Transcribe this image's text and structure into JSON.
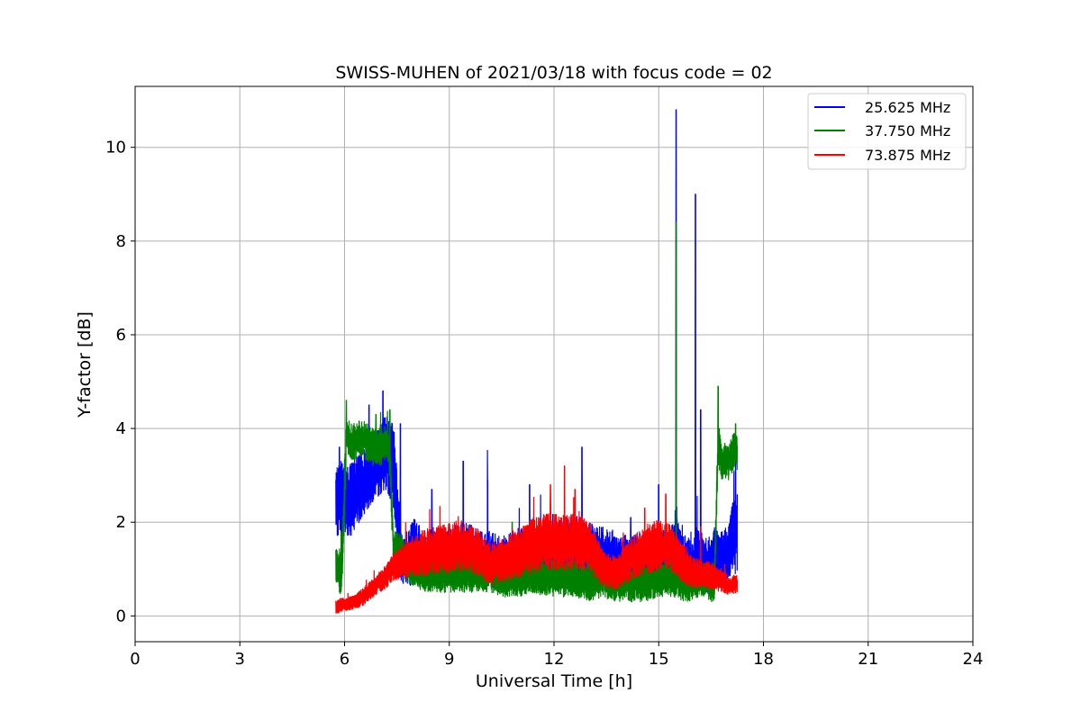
{
  "chart_data": {
    "type": "line",
    "title": "SWISS-MUHEN of 2021/03/18 with focus code = 02",
    "xlabel": "Universal Time [h]",
    "ylabel": "Y-factor [dB]",
    "xlim": [
      0,
      24
    ],
    "ylim": [
      -0.55,
      11.3
    ],
    "xticks": [
      0,
      3,
      6,
      9,
      12,
      15,
      18,
      21,
      24
    ],
    "yticks": [
      0,
      2,
      4,
      6,
      8,
      10
    ],
    "grid": true,
    "legend_position": "top-right",
    "series": [
      {
        "name": "25.625 MHz",
        "color": "#0000ff",
        "x": [
          5.75,
          5.8,
          5.9,
          6.0,
          6.2,
          6.5,
          6.8,
          7.0,
          7.2,
          7.4,
          7.5,
          7.6,
          7.8,
          8.0,
          8.3,
          8.6,
          9.0,
          9.4,
          9.8,
          10.2,
          10.6,
          11.0,
          11.4,
          11.8,
          12.2,
          12.6,
          13.0,
          13.4,
          13.8,
          14.2,
          14.6,
          15.0,
          15.3,
          15.45,
          15.5,
          15.55,
          15.65,
          15.8,
          15.95,
          16.05,
          16.1,
          16.2,
          16.4,
          16.6,
          16.8,
          17.0,
          17.1,
          17.25
        ],
        "mid": [
          2.4,
          2.5,
          2.6,
          2.3,
          2.5,
          2.8,
          3.1,
          3.3,
          3.5,
          3.2,
          2.4,
          1.3,
          1.2,
          1.4,
          1.2,
          1.3,
          1.3,
          1.4,
          1.3,
          1.2,
          1.1,
          1.3,
          1.2,
          1.3,
          1.4,
          1.5,
          1.4,
          1.3,
          1.2,
          1.1,
          1.2,
          1.2,
          1.3,
          1.4,
          1.8,
          1.4,
          1.2,
          1.1,
          1.0,
          1.2,
          1.4,
          1.2,
          1.1,
          1.3,
          1.2,
          1.4,
          1.6,
          1.8
        ],
        "band": [
          0.7,
          0.8,
          0.9,
          0.8,
          0.8,
          0.7,
          0.7,
          0.8,
          0.8,
          0.9,
          1.0,
          0.6,
          0.6,
          0.7,
          0.6,
          0.6,
          0.6,
          0.6,
          0.6,
          0.6,
          0.6,
          0.6,
          0.6,
          0.6,
          0.7,
          0.7,
          0.6,
          0.6,
          0.6,
          0.6,
          0.6,
          0.6,
          0.6,
          0.6,
          0.8,
          0.6,
          0.6,
          0.6,
          0.6,
          0.6,
          0.6,
          0.6,
          0.6,
          0.6,
          0.6,
          0.6,
          0.8,
          0.9
        ],
        "spikes": [
          [
            5.85,
            3.6
          ],
          [
            6.7,
            4.5
          ],
          [
            7.1,
            4.8
          ],
          [
            7.6,
            4.1
          ],
          [
            8.5,
            2.7
          ],
          [
            9.4,
            3.3
          ],
          [
            10.1,
            2.9
          ],
          [
            11.3,
            2.8
          ],
          [
            12.8,
            3.6
          ],
          [
            14.2,
            2.1
          ],
          [
            15.0,
            2.8
          ],
          [
            15.5,
            10.8
          ],
          [
            16.05,
            9.0
          ],
          [
            16.2,
            4.4
          ],
          [
            17.2,
            3.5
          ]
        ]
      },
      {
        "name": "37.750 MHz",
        "color": "#008000",
        "x": [
          5.75,
          5.8,
          5.9,
          6.0,
          6.05,
          6.2,
          6.5,
          6.8,
          7.0,
          7.2,
          7.3,
          7.4,
          7.6,
          7.8,
          8.0,
          8.3,
          8.6,
          9.0,
          9.4,
          9.8,
          10.2,
          10.6,
          11.0,
          11.4,
          11.8,
          12.2,
          12.6,
          13.0,
          13.4,
          13.8,
          14.2,
          14.6,
          15.0,
          15.4,
          15.8,
          16.2,
          16.5,
          16.6,
          16.7,
          16.8,
          17.0,
          17.2,
          17.25
        ],
        "mid": [
          1.1,
          1.0,
          0.9,
          2.5,
          3.9,
          3.7,
          3.8,
          3.6,
          3.6,
          3.7,
          3.4,
          1.4,
          1.4,
          1.1,
          1.0,
          0.9,
          0.9,
          0.9,
          0.9,
          0.9,
          0.9,
          0.8,
          0.8,
          0.9,
          0.8,
          0.8,
          0.8,
          0.7,
          0.8,
          0.7,
          0.7,
          0.7,
          0.8,
          0.8,
          0.7,
          0.8,
          0.7,
          0.8,
          3.7,
          3.3,
          3.3,
          3.6,
          3.5
        ],
        "band": [
          0.4,
          0.5,
          0.5,
          0.9,
          0.4,
          0.4,
          0.4,
          0.4,
          0.4,
          0.4,
          0.5,
          0.4,
          0.4,
          0.4,
          0.4,
          0.4,
          0.4,
          0.4,
          0.4,
          0.4,
          0.4,
          0.4,
          0.4,
          0.4,
          0.4,
          0.4,
          0.4,
          0.4,
          0.4,
          0.4,
          0.4,
          0.4,
          0.4,
          0.4,
          0.4,
          0.4,
          0.4,
          0.5,
          0.5,
          0.4,
          0.4,
          0.4,
          0.4
        ],
        "spikes": [
          [
            6.05,
            4.6
          ],
          [
            6.9,
            4.3
          ],
          [
            7.3,
            4.4
          ],
          [
            10.8,
            2.0
          ],
          [
            15.5,
            8.4
          ],
          [
            16.7,
            4.9
          ],
          [
            17.2,
            4.1
          ]
        ]
      },
      {
        "name": "73.875 MHz",
        "color": "#ff0000",
        "x": [
          5.75,
          6.0,
          6.3,
          6.6,
          6.9,
          7.2,
          7.4,
          7.6,
          7.8,
          8.0,
          8.3,
          8.6,
          9.0,
          9.4,
          9.8,
          10.2,
          10.6,
          11.0,
          11.4,
          11.8,
          12.2,
          12.6,
          13.0,
          13.4,
          13.8,
          14.2,
          14.6,
          15.0,
          15.3,
          15.6,
          15.9,
          16.2,
          16.5,
          16.8,
          17.0,
          17.25
        ],
        "mid": [
          0.2,
          0.25,
          0.3,
          0.45,
          0.65,
          0.85,
          1.05,
          1.15,
          1.2,
          1.3,
          1.35,
          1.4,
          1.45,
          1.5,
          1.35,
          1.1,
          1.2,
          1.35,
          1.5,
          1.6,
          1.55,
          1.6,
          1.5,
          1.0,
          0.9,
          1.2,
          1.4,
          1.5,
          1.5,
          1.2,
          0.95,
          0.9,
          0.85,
          0.75,
          0.65,
          0.7
        ],
        "band": [
          0.15,
          0.15,
          0.15,
          0.2,
          0.2,
          0.25,
          0.3,
          0.35,
          0.4,
          0.45,
          0.5,
          0.5,
          0.55,
          0.55,
          0.5,
          0.45,
          0.5,
          0.55,
          0.6,
          0.6,
          0.6,
          0.6,
          0.55,
          0.4,
          0.35,
          0.45,
          0.55,
          0.55,
          0.5,
          0.45,
          0.35,
          0.3,
          0.3,
          0.25,
          0.2,
          0.2
        ],
        "spikes": [
          [
            11.9,
            2.8
          ],
          [
            12.3,
            3.2
          ],
          [
            12.6,
            2.7
          ],
          [
            14.6,
            2.3
          ],
          [
            15.2,
            2.6
          ],
          [
            16.2,
            1.9
          ]
        ]
      }
    ]
  }
}
